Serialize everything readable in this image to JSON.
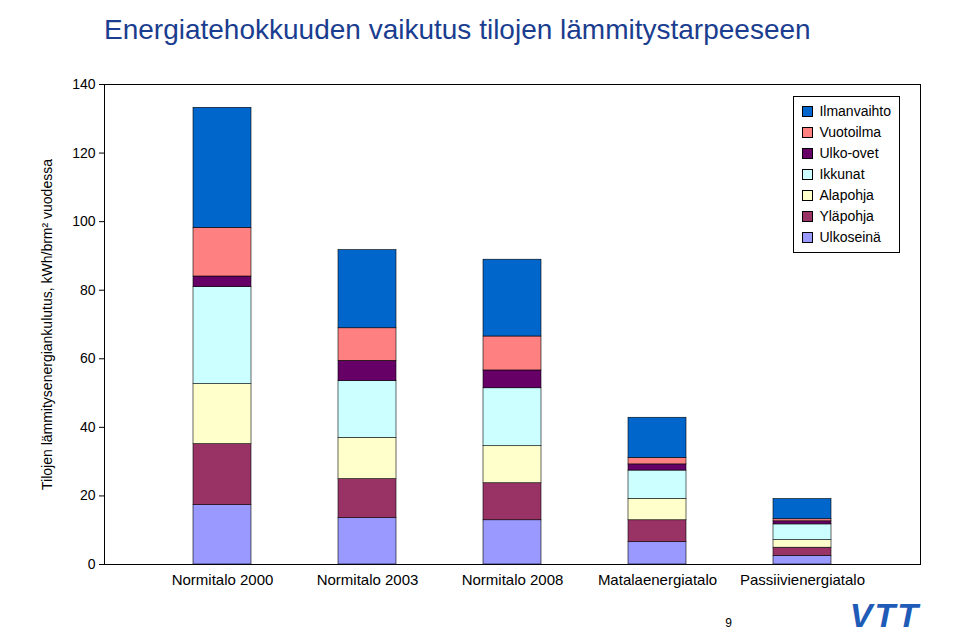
{
  "chart_data": {
    "type": "bar",
    "title": "Energiatehokkuuden vaikutus tilojen lämmitystarpeeseen",
    "y_label": "Tilojen lämmitysenergiankulutus, kWh/brm² vuodessa",
    "categories": [
      "Normitalo 2000",
      "Normitalo 2003",
      "Normitalo 2008",
      "Matalaenergiatalo",
      "Passiivienergiatalo"
    ],
    "series": [
      {
        "name": "Ulkoseinä",
        "color": "#9999ff",
        "values": [
          17.3,
          13.5,
          12.9,
          6.5,
          2.5
        ]
      },
      {
        "name": "Yläpohja",
        "color": "#993366",
        "values": [
          17.8,
          11.4,
          10.8,
          6.4,
          2.4
        ]
      },
      {
        "name": "Alapohja",
        "color": "#ffffcc",
        "values": [
          17.5,
          12.0,
          10.8,
          6.2,
          2.2
        ]
      },
      {
        "name": "Ikkunat",
        "color": "#ccffff",
        "values": [
          28.3,
          16.6,
          16.9,
          8.3,
          4.6
        ]
      },
      {
        "name": "Ulko-ovet",
        "color": "#660066",
        "values": [
          3.1,
          5.9,
          5.2,
          1.8,
          0.9
        ]
      },
      {
        "name": "Vuotoilma",
        "color": "#ff8080",
        "values": [
          14.2,
          9.5,
          9.9,
          1.9,
          0.6
        ]
      },
      {
        "name": "Ilmanvaihto",
        "color": "#0066cc",
        "values": [
          35.0,
          22.8,
          22.4,
          11.7,
          5.9
        ]
      }
    ],
    "ylim": [
      0,
      140
    ],
    "yticks": [
      0,
      20,
      40,
      60,
      80,
      100,
      120,
      140
    ],
    "stacked": true,
    "grid": false,
    "legend": "top-right",
    "data_labels": false,
    "annotations": [
      "9",
      "VTT"
    ]
  }
}
